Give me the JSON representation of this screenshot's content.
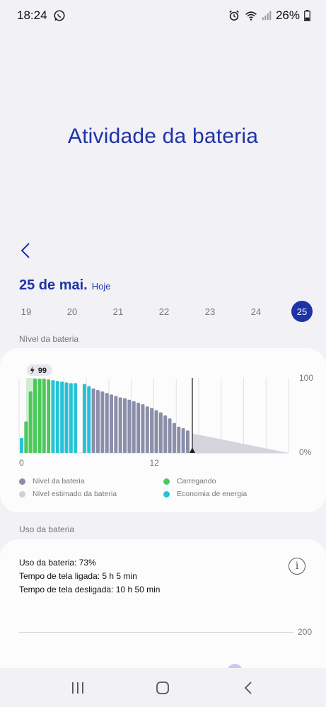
{
  "status_bar": {
    "time": "18:24",
    "battery_percent": "26%",
    "icons": [
      "whatsapp-icon",
      "alarm-icon",
      "wifi-icon",
      "signal-icon",
      "battery-icon"
    ]
  },
  "header": {
    "title": "Atividade da bateria"
  },
  "date": {
    "main": "25 de mai.",
    "sub": "Hoje"
  },
  "days": [
    "19",
    "20",
    "21",
    "22",
    "23",
    "24",
    "25"
  ],
  "selected_day": "25",
  "battery_level_section": {
    "label": "Nível da bateria"
  },
  "chart_data": {
    "type": "bar",
    "title": "",
    "xlabel": "",
    "ylabel": "",
    "ylim": [
      0,
      100
    ],
    "x_tick_labels": [
      "0",
      "12"
    ],
    "y_tick_labels": [
      "100",
      "0%"
    ],
    "peak_badge": "99",
    "bars": [
      {
        "v": 20,
        "c": "saving"
      },
      {
        "v": 42,
        "c": "charging"
      },
      {
        "v": 82,
        "c": "charging"
      },
      {
        "v": 99,
        "c": "charging"
      },
      {
        "v": 99,
        "c": "charging"
      },
      {
        "v": 99,
        "c": "charging"
      },
      {
        "v": 98,
        "c": "charging"
      },
      {
        "v": 97,
        "c": "saving"
      },
      {
        "v": 96,
        "c": "saving"
      },
      {
        "v": 95,
        "c": "saving"
      },
      {
        "v": 94,
        "c": "saving"
      },
      {
        "v": 93,
        "c": "saving"
      },
      {
        "v": 93,
        "c": "saving"
      },
      {
        "v": null,
        "c": "gap"
      },
      {
        "v": 92,
        "c": "saving"
      },
      {
        "v": 89,
        "c": "saving"
      },
      {
        "v": 86,
        "c": "level"
      },
      {
        "v": 84,
        "c": "level"
      },
      {
        "v": 82,
        "c": "level"
      },
      {
        "v": 80,
        "c": "level"
      },
      {
        "v": 78,
        "c": "level"
      },
      {
        "v": 76,
        "c": "level"
      },
      {
        "v": 74,
        "c": "level"
      },
      {
        "v": 73,
        "c": "level"
      },
      {
        "v": 71,
        "c": "level"
      },
      {
        "v": 69,
        "c": "level"
      },
      {
        "v": 67,
        "c": "level"
      },
      {
        "v": 65,
        "c": "level"
      },
      {
        "v": 62,
        "c": "level"
      },
      {
        "v": 60,
        "c": "level"
      },
      {
        "v": 57,
        "c": "level"
      },
      {
        "v": 54,
        "c": "level"
      },
      {
        "v": 50,
        "c": "level"
      },
      {
        "v": 46,
        "c": "level"
      },
      {
        "v": 40,
        "c": "level"
      },
      {
        "v": 35,
        "c": "level"
      },
      {
        "v": 33,
        "c": "level"
      },
      {
        "v": 30,
        "c": "level"
      }
    ],
    "estimate_start": 26,
    "estimate_end": 0,
    "legend": [
      {
        "name": "Nível da bateria",
        "color": "#8a8ea8"
      },
      {
        "name": "Carregando",
        "color": "#4cc85a"
      },
      {
        "name": "Nível estimado da bateria",
        "color": "#cfd0dc"
      },
      {
        "name": "Economia de energia",
        "color": "#27c2d8"
      }
    ],
    "colors": {
      "level": "#8a8ea8",
      "charging": "#4cc85a",
      "saving": "#27c2d8",
      "estimate": "#d3d4de",
      "charge_window": "#cdeed0"
    }
  },
  "battery_usage_section": {
    "label": "Uso da bateria",
    "lines": [
      "Uso da bateria: 73%",
      "Tempo de tela ligada: 5 h 5 min",
      "Tempo de tela desligada: 10 h 50 min"
    ],
    "y_tick": "200",
    "info_symbol": "i"
  },
  "nav_bar": {
    "buttons": [
      "recents-icon",
      "home-icon",
      "back-nav-icon"
    ]
  }
}
